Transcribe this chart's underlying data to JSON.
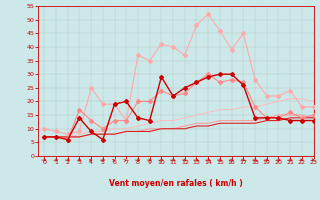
{
  "x": [
    0,
    1,
    2,
    3,
    4,
    5,
    6,
    7,
    8,
    9,
    10,
    11,
    12,
    13,
    14,
    15,
    16,
    17,
    18,
    19,
    20,
    21,
    22,
    23
  ],
  "series": [
    {
      "name": "lightest_pink",
      "color": "#ffaaaa",
      "linewidth": 0.8,
      "marker": "D",
      "markersize": 2,
      "values": [
        10,
        9,
        8,
        9,
        25,
        19,
        19,
        13,
        37,
        35,
        41,
        40,
        37,
        48,
        52,
        46,
        39,
        45,
        28,
        22,
        22,
        24,
        18,
        18
      ]
    },
    {
      "name": "medium_pink",
      "color": "#ff8888",
      "linewidth": 0.8,
      "marker": "D",
      "markersize": 2,
      "values": [
        7,
        7,
        6,
        17,
        13,
        10,
        13,
        13,
        20,
        20,
        24,
        22,
        23,
        27,
        30,
        27,
        28,
        27,
        18,
        14,
        14,
        16,
        14,
        15
      ]
    },
    {
      "name": "dark_red",
      "color": "#cc0000",
      "linewidth": 1.0,
      "marker": "D",
      "markersize": 2,
      "values": [
        7,
        7,
        6,
        14,
        9,
        6,
        19,
        20,
        14,
        13,
        29,
        22,
        25,
        27,
        29,
        30,
        30,
        26,
        14,
        14,
        14,
        13,
        13,
        13
      ]
    },
    {
      "name": "pale_line1",
      "color": "#ffbbbb",
      "linewidth": 0.7,
      "marker": null,
      "values": [
        7,
        7,
        7,
        8,
        9,
        9,
        10,
        10,
        11,
        12,
        13,
        13,
        14,
        15,
        16,
        17,
        17,
        18,
        18,
        19,
        20,
        21,
        21,
        20
      ]
    },
    {
      "name": "pale_line2",
      "color": "#ff9999",
      "linewidth": 0.7,
      "marker": null,
      "values": [
        7,
        7,
        7,
        7,
        8,
        8,
        8,
        9,
        9,
        10,
        10,
        10,
        11,
        12,
        12,
        13,
        13,
        13,
        13,
        14,
        15,
        15,
        15,
        14
      ]
    },
    {
      "name": "red_line",
      "color": "#dd2222",
      "linewidth": 0.8,
      "marker": null,
      "values": [
        7,
        7,
        7,
        7,
        8,
        8,
        8,
        9,
        9,
        9,
        10,
        10,
        10,
        11,
        11,
        12,
        12,
        12,
        12,
        13,
        13,
        14,
        14,
        14
      ]
    }
  ],
  "xlabel": "Vent moyen/en rafales ( km/h )",
  "xlim": [
    -0.5,
    23
  ],
  "ylim": [
    0,
    55
  ],
  "yticks": [
    0,
    5,
    10,
    15,
    20,
    25,
    30,
    35,
    40,
    45,
    50,
    55
  ],
  "xticks": [
    0,
    1,
    2,
    3,
    4,
    5,
    6,
    7,
    8,
    9,
    10,
    11,
    12,
    13,
    14,
    15,
    16,
    17,
    18,
    19,
    20,
    21,
    22,
    23
  ],
  "background_color": "#cce8e8",
  "grid_color": "#aaaaaa",
  "tick_color": "#cc0000",
  "label_color": "#cc0000",
  "arrow_color": "#cc0000",
  "arrow_angles": [
    0,
    15,
    0,
    25,
    35,
    10,
    45,
    50,
    0,
    -10,
    15,
    0,
    -20,
    -10,
    0,
    -15,
    -15,
    -20,
    -15,
    -10,
    0,
    10,
    -30,
    -45
  ]
}
